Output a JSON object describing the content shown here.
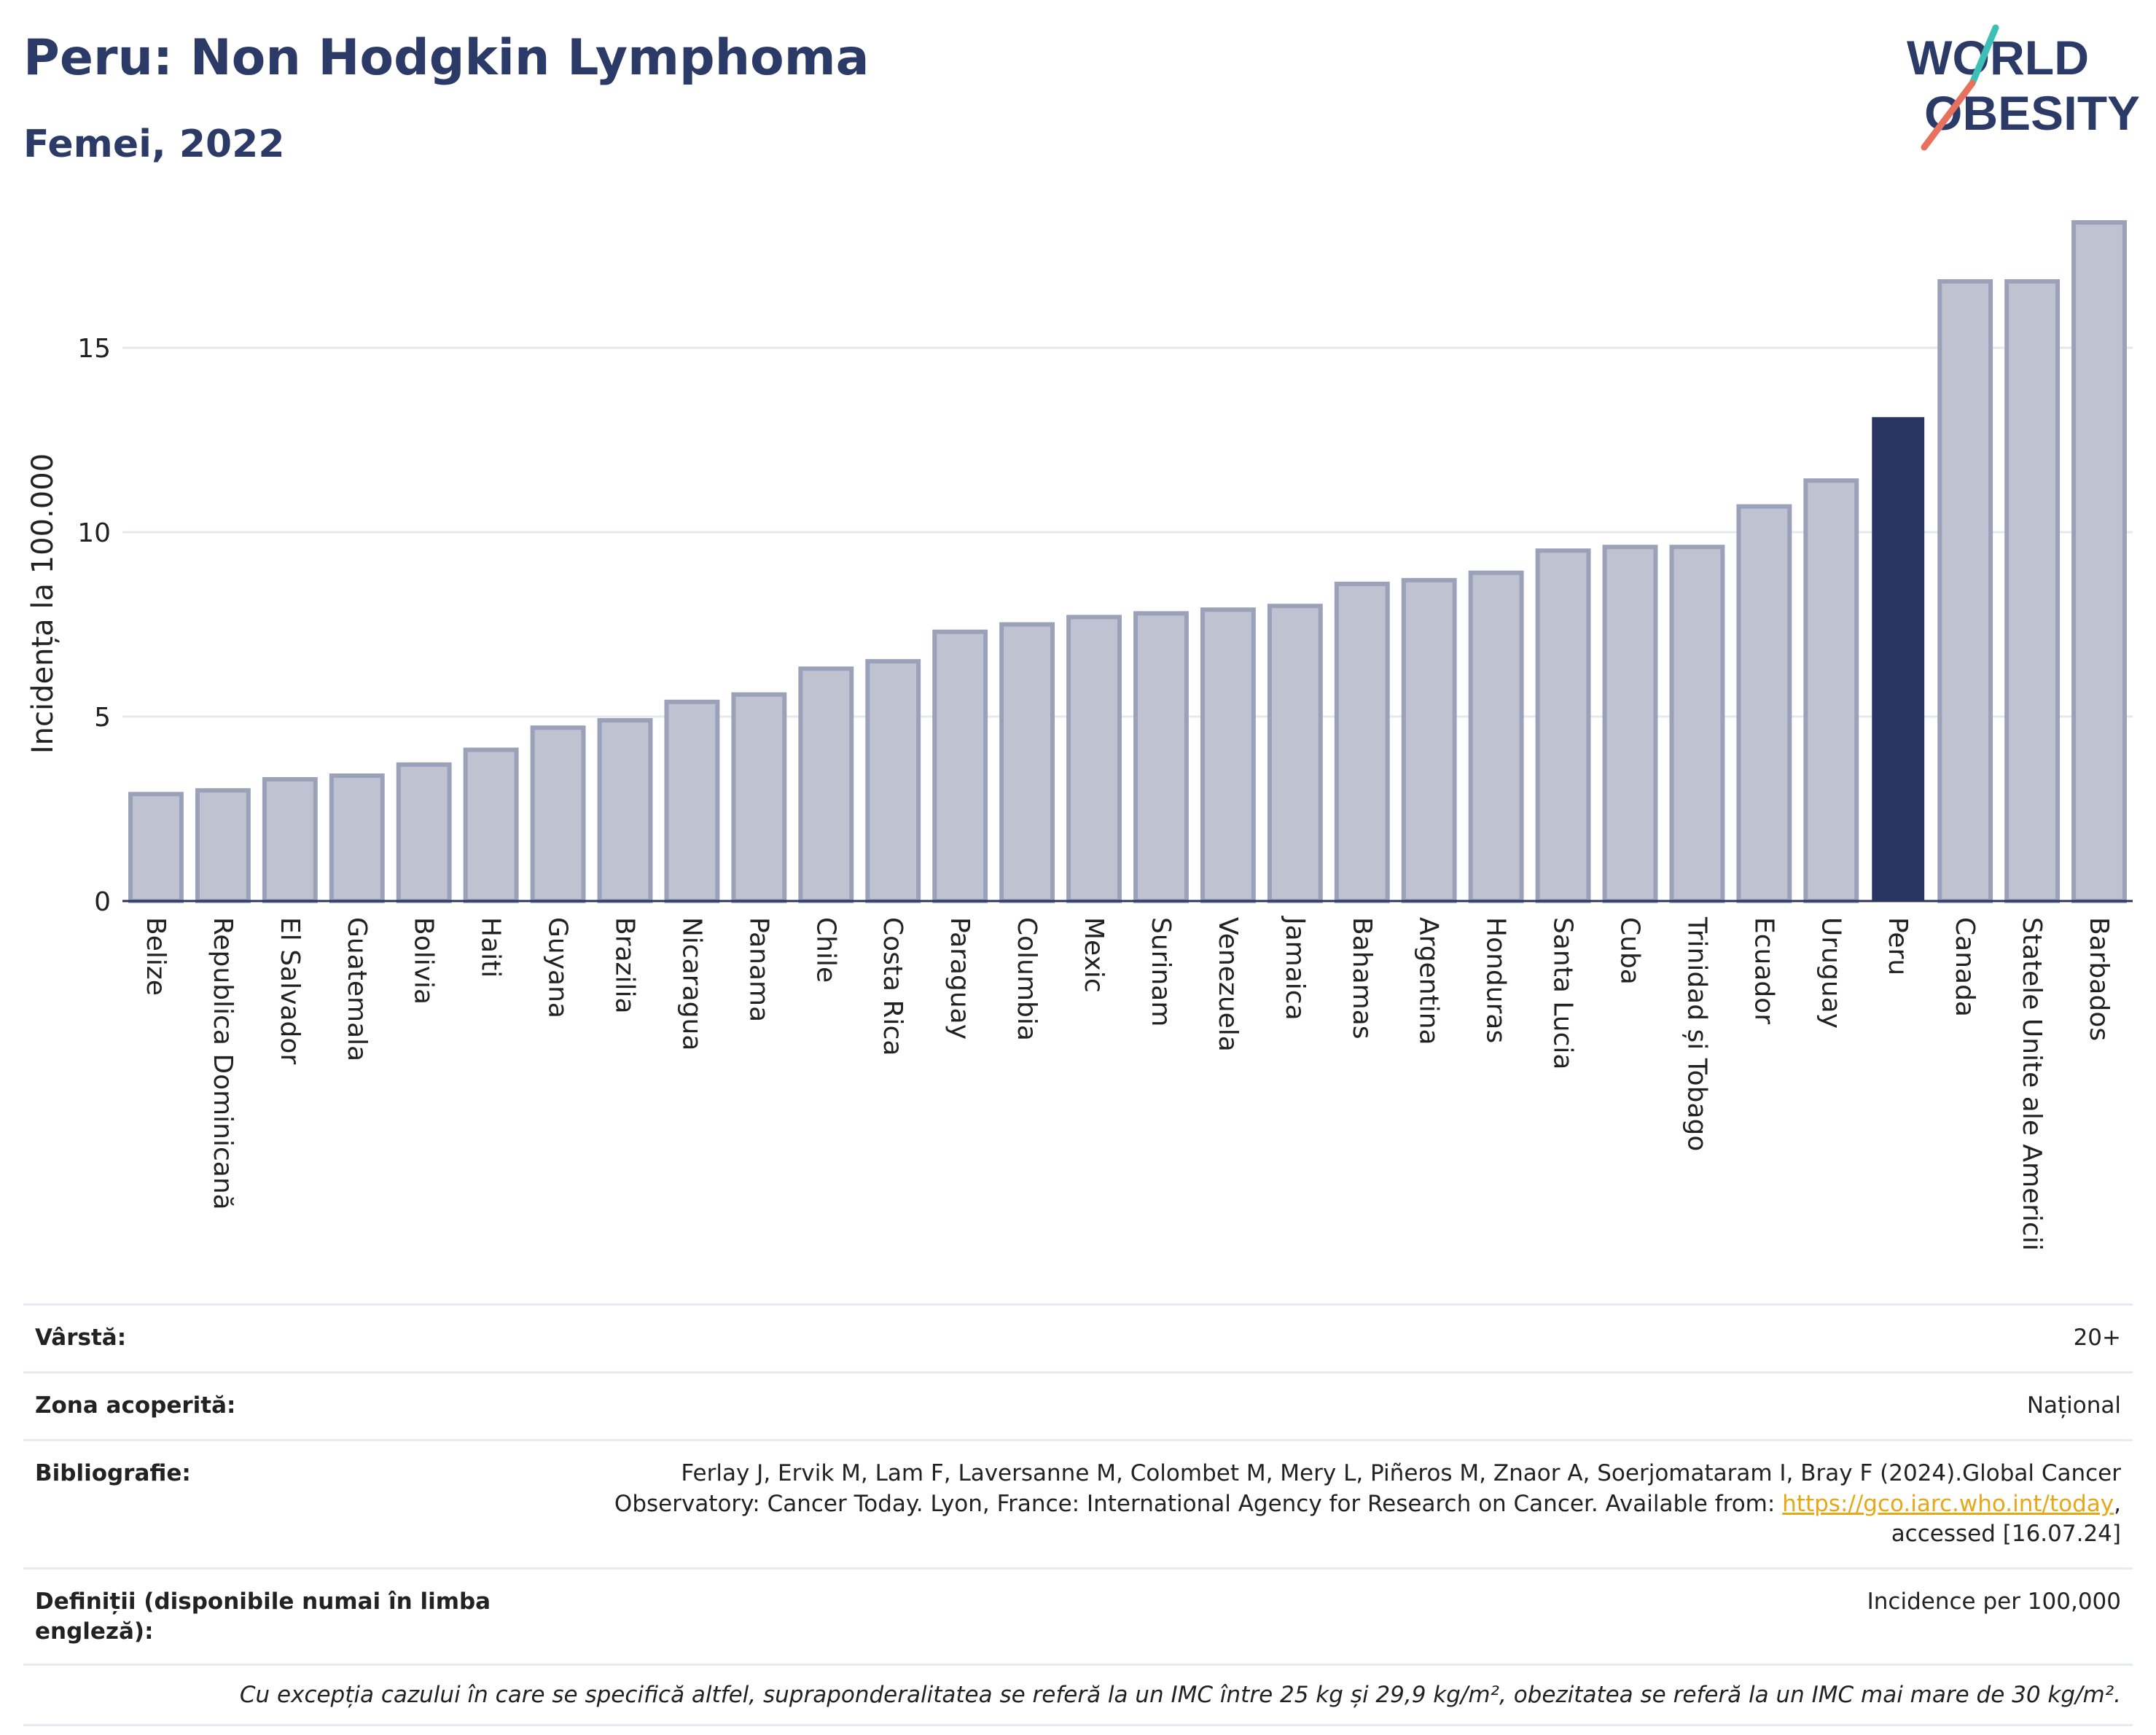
{
  "header": {
    "title": "Peru: Non Hodgkin Lymphoma",
    "subtitle": "Femei, 2022"
  },
  "logo": {
    "line1": "WORLD",
    "line2": "OBESITY"
  },
  "chart_data": {
    "type": "bar",
    "ylabel": "Incidența la 100.000",
    "xlabel": "",
    "ylim": [
      0,
      18.5
    ],
    "yticks": [
      0,
      5,
      10,
      15
    ],
    "grid": true,
    "categories": [
      "Belize",
      "Republica Dominicană",
      "El Salvador",
      "Guatemala",
      "Bolivia",
      "Haiti",
      "Guyana",
      "Brazilia",
      "Nicaragua",
      "Panama",
      "Chile",
      "Costa Rica",
      "Paraguay",
      "Columbia",
      "Mexic",
      "Surinam",
      "Venezuela",
      "Jamaica",
      "Bahamas",
      "Argentina",
      "Honduras",
      "Santa Lucia",
      "Cuba",
      "Trinidad și Tobago",
      "Ecuador",
      "Uruguay",
      "Peru",
      "Canada",
      "Statele Unite ale Americii",
      "Barbados"
    ],
    "values": [
      2.9,
      3.0,
      3.3,
      3.4,
      3.7,
      4.1,
      4.7,
      4.9,
      5.4,
      5.6,
      6.3,
      6.5,
      7.3,
      7.5,
      7.7,
      7.8,
      7.9,
      8.0,
      8.6,
      8.7,
      8.9,
      9.5,
      9.6,
      9.6,
      10.7,
      11.4,
      13.1,
      16.8,
      16.8,
      18.4
    ],
    "highlight": "Peru",
    "colors": {
      "bar": "#bfc3d1",
      "bar_border": "#9aa1b9",
      "highlight": "#2b3562",
      "grid": "#e6e8ee",
      "axis": "#2b3562"
    }
  },
  "meta": {
    "age_label": "Vârstă:",
    "age_value": "20+",
    "area_label": "Zona acoperită:",
    "area_value": "Național",
    "biblio_label": "Bibliografie:",
    "biblio_text": "Ferlay J, Ervik M, Lam F, Laversanne M, Colombet M, Mery L, Piñeros M, Znaor A, Soerjomataram I, Bray F (2024).Global Cancer Observatory: Cancer Today. Lyon, France: International Agency for Research on Cancer. Available from: ",
    "biblio_link": "https://gco.iarc.who.int/today",
    "biblio_tail": ", accessed [16.07.24]",
    "defs_label": "Definiții (disponibile numai în limba engleză):",
    "defs_value": "Incidence per 100,000",
    "footnote": "Cu excepția cazului în care se specifică altfel, supraponderalitatea se referă la un IMC între 25 kg și 29,9 kg/m², obezitatea se referă la un IMC mai mare de 30 kg/m²."
  }
}
